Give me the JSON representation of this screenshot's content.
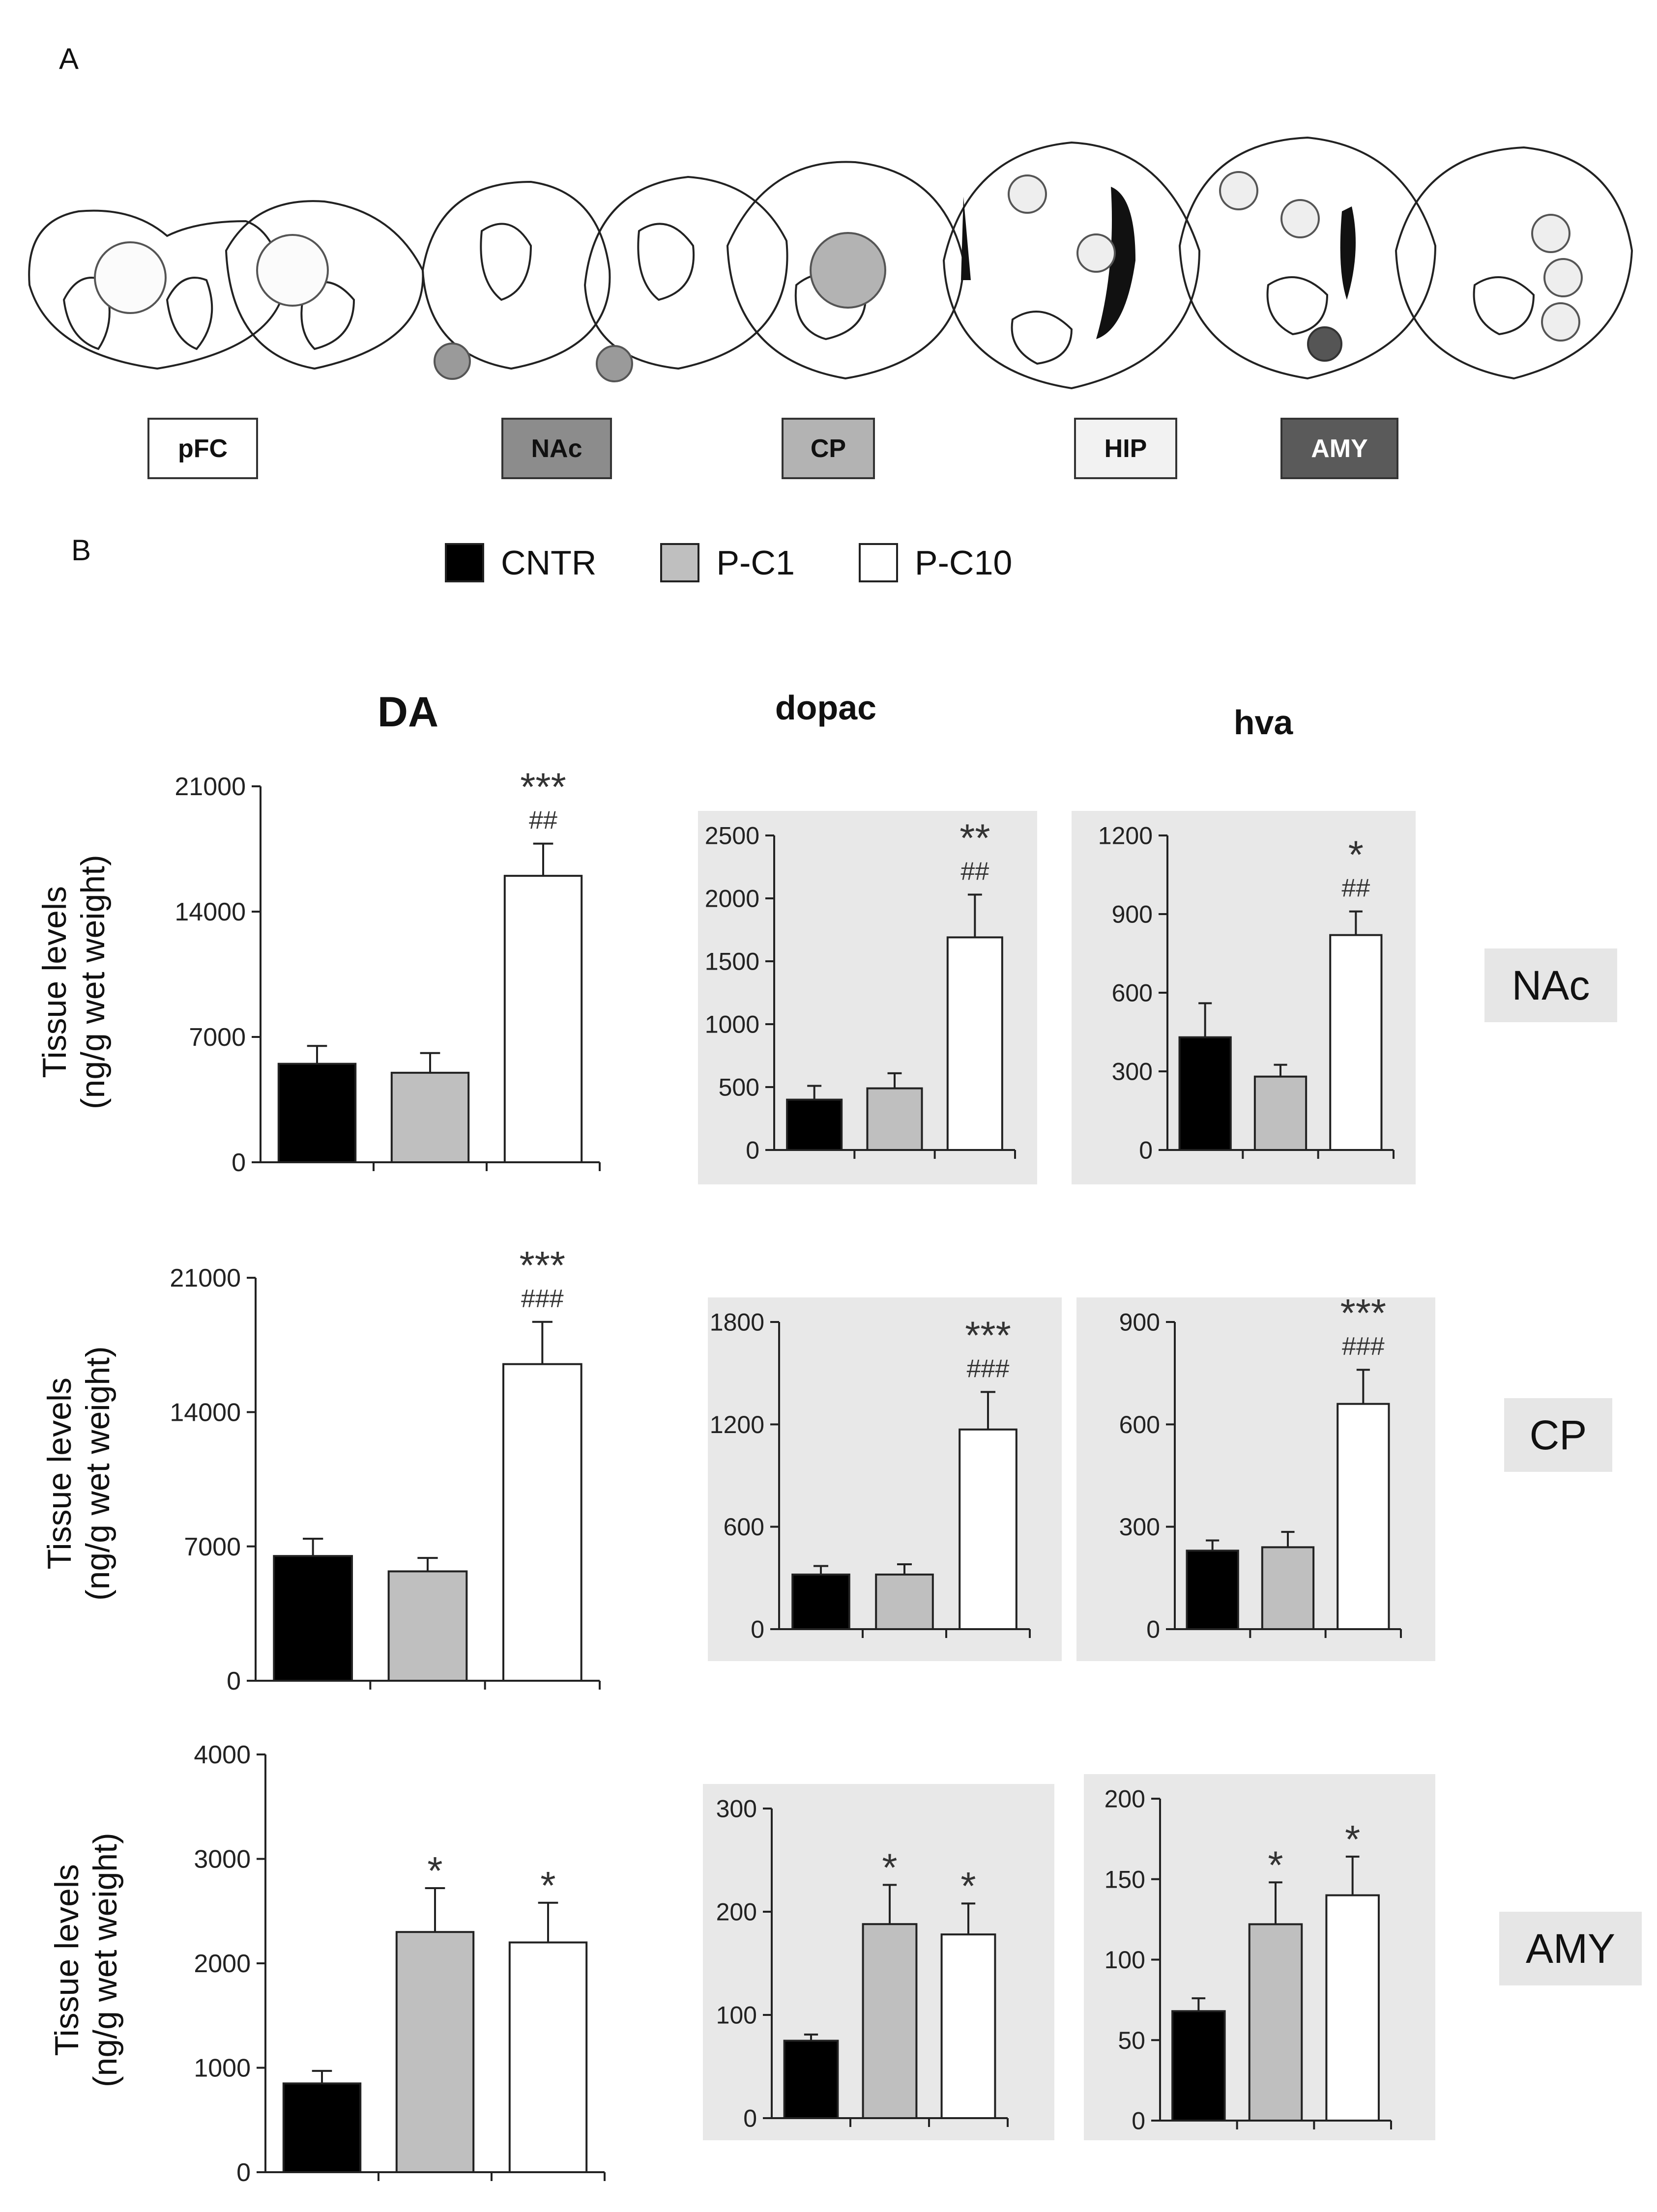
{
  "panel_a": {
    "label": "A",
    "regions": [
      {
        "name": "pFC",
        "fill": "#ffffff",
        "text_color": "#111111"
      },
      {
        "name": "NAc",
        "fill": "#8c8c8c",
        "text_color": "#111111"
      },
      {
        "name": "CP",
        "fill": "#b3b3b3",
        "text_color": "#111111"
      },
      {
        "name": "HIP",
        "fill": "#f2f2f2",
        "text_color": "#111111"
      },
      {
        "name": "AMY",
        "fill": "#5a5a5a",
        "text_color": "#ffffff"
      }
    ]
  },
  "panel_b": {
    "label": "B",
    "legend": [
      {
        "name": "CNTR",
        "color": "#000000"
      },
      {
        "name": "P-C1",
        "color": "#bfbfbf"
      },
      {
        "name": "P-C10",
        "color": "#ffffff"
      }
    ],
    "column_titles": [
      "DA",
      "dopac",
      "hva"
    ],
    "row_labels": [
      "NAc",
      "CP",
      "AMY"
    ],
    "ylabel_line1": "Tissue levels",
    "ylabel_line2": "(ng/g wet weight)"
  },
  "chart_data": [
    {
      "type": "bar",
      "id": "NAc-DA",
      "categories": [
        "CNTR",
        "P-C1",
        "P-C10"
      ],
      "values": [
        5500,
        5000,
        16000
      ],
      "errors": [
        1000,
        1100,
        1800
      ],
      "ylim": [
        0,
        21000
      ],
      "yticks": [
        "0",
        "7000",
        "14000",
        "21000"
      ],
      "annotations": [
        "",
        "",
        "***\n##"
      ],
      "shaded": false
    },
    {
      "type": "bar",
      "id": "NAc-dopac",
      "categories": [
        "CNTR",
        "P-C1",
        "P-C10"
      ],
      "values": [
        400,
        490,
        1690
      ],
      "errors": [
        110,
        120,
        340
      ],
      "ylim": [
        0,
        2500
      ],
      "yticks": [
        "0",
        "500",
        "1000",
        "1500",
        "2000",
        "2500"
      ],
      "annotations": [
        "",
        "",
        "**\n##"
      ],
      "shaded": true
    },
    {
      "type": "bar",
      "id": "NAc-hva",
      "categories": [
        "CNTR",
        "P-C1",
        "P-C10"
      ],
      "values": [
        430,
        280,
        820
      ],
      "errors": [
        130,
        45,
        90
      ],
      "ylim": [
        0,
        1200
      ],
      "yticks": [
        "0",
        "300",
        "600",
        "900",
        "1200"
      ],
      "annotations": [
        "",
        "",
        "*\n##"
      ],
      "shaded": true
    },
    {
      "type": "bar",
      "id": "CP-DA",
      "categories": [
        "CNTR",
        "P-C1",
        "P-C10"
      ],
      "values": [
        6500,
        5700,
        16500
      ],
      "errors": [
        900,
        700,
        2200
      ],
      "ylim": [
        0,
        21000
      ],
      "yticks": [
        "0",
        "7000",
        "14000",
        "21000"
      ],
      "annotations": [
        "",
        "",
        "***\n###"
      ],
      "shaded": false
    },
    {
      "type": "bar",
      "id": "CP-dopac",
      "categories": [
        "CNTR",
        "P-C1",
        "P-C10"
      ],
      "values": [
        320,
        320,
        1170
      ],
      "errors": [
        50,
        60,
        220
      ],
      "ylim": [
        0,
        1800
      ],
      "yticks": [
        "0",
        "600",
        "1200",
        "1800"
      ],
      "annotations": [
        "",
        "",
        "***\n###"
      ],
      "shaded": true
    },
    {
      "type": "bar",
      "id": "CP-hva",
      "categories": [
        "CNTR",
        "P-C1",
        "P-C10"
      ],
      "values": [
        230,
        240,
        660
      ],
      "errors": [
        30,
        45,
        100
      ],
      "ylim": [
        0,
        900
      ],
      "yticks": [
        "0",
        "300",
        "600",
        "900"
      ],
      "annotations": [
        "",
        "",
        "***\n###"
      ],
      "shaded": true
    },
    {
      "type": "bar",
      "id": "AMY-DA",
      "categories": [
        "CNTR",
        "P-C1",
        "P-C10"
      ],
      "values": [
        850,
        2300,
        2200
      ],
      "errors": [
        120,
        420,
        380
      ],
      "ylim": [
        0,
        4000
      ],
      "yticks": [
        "0",
        "1000",
        "2000",
        "3000",
        "4000"
      ],
      "annotations": [
        "",
        "*",
        "*"
      ],
      "shaded": false
    },
    {
      "type": "bar",
      "id": "AMY-dopac",
      "categories": [
        "CNTR",
        "P-C1",
        "P-C10"
      ],
      "values": [
        75,
        188,
        178
      ],
      "errors": [
        6,
        38,
        30
      ],
      "ylim": [
        0,
        300
      ],
      "yticks": [
        "0",
        "100",
        "200",
        "300"
      ],
      "annotations": [
        "",
        "*",
        "*"
      ],
      "shaded": true
    },
    {
      "type": "bar",
      "id": "AMY-hva",
      "categories": [
        "CNTR",
        "P-C1",
        "P-C10"
      ],
      "values": [
        68,
        122,
        140
      ],
      "errors": [
        8,
        26,
        24
      ],
      "ylim": [
        0,
        200
      ],
      "yticks": [
        "0",
        "50",
        "100",
        "150",
        "200"
      ],
      "annotations": [
        "",
        "*",
        "*"
      ],
      "shaded": true
    }
  ]
}
